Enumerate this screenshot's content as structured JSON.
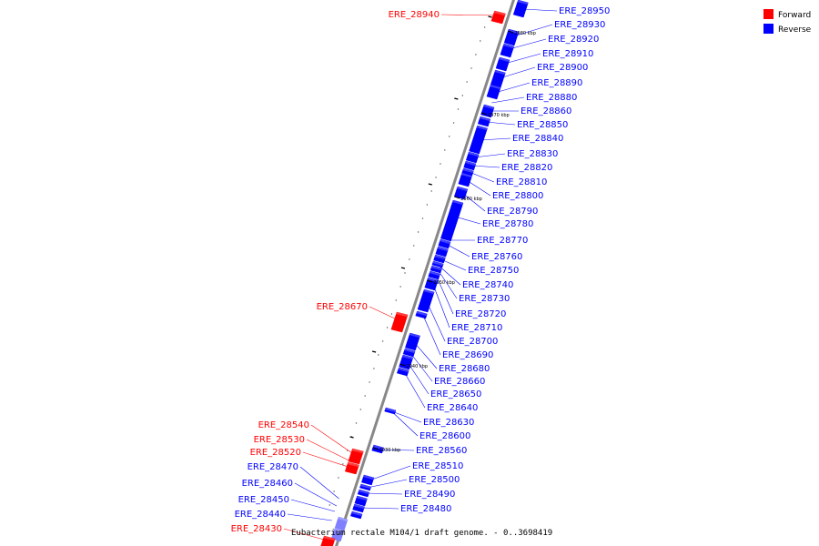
{
  "caption": "Eubacterium rectale M104/1 draft genome. - 0..3698419",
  "legend": [
    {
      "label": "Forward",
      "color": "#ff0000"
    },
    {
      "label": "Reverse",
      "color": "#0000ff"
    }
  ],
  "colors": {
    "forward": "#ff0000",
    "reverse": "#0000ff",
    "backbone": "#888888"
  },
  "scale_ticks": [
    "2980 kbp",
    "2970 kbp",
    "2960 kbp",
    "2950 kbp",
    "2940 kbp",
    "2930 kbp"
  ],
  "forward_genes": [
    "ERE_28940",
    "ERE_28670",
    "ERE_28540",
    "ERE_28530",
    "ERE_28520",
    "ERE_28430"
  ],
  "reverse_genes": [
    "ERE_28950",
    "ERE_28930",
    "ERE_28920",
    "ERE_28910",
    "ERE_28900",
    "ERE_28890",
    "ERE_28880",
    "ERE_28860",
    "ERE_28850",
    "ERE_28840",
    "ERE_28830",
    "ERE_28820",
    "ERE_28810",
    "ERE_28800",
    "ERE_28790",
    "ERE_28780",
    "ERE_28770",
    "ERE_28760",
    "ERE_28750",
    "ERE_28740",
    "ERE_28730",
    "ERE_28720",
    "ERE_28710",
    "ERE_28700",
    "ERE_28690",
    "ERE_28680",
    "ERE_28660",
    "ERE_28650",
    "ERE_28640",
    "ERE_28630",
    "ERE_28600",
    "ERE_28560",
    "ERE_28510",
    "ERE_28500",
    "ERE_28490",
    "ERE_28480"
  ],
  "reverse_genes_left": [
    "ERE_28470",
    "ERE_28460",
    "ERE_28450",
    "ERE_28440"
  ]
}
